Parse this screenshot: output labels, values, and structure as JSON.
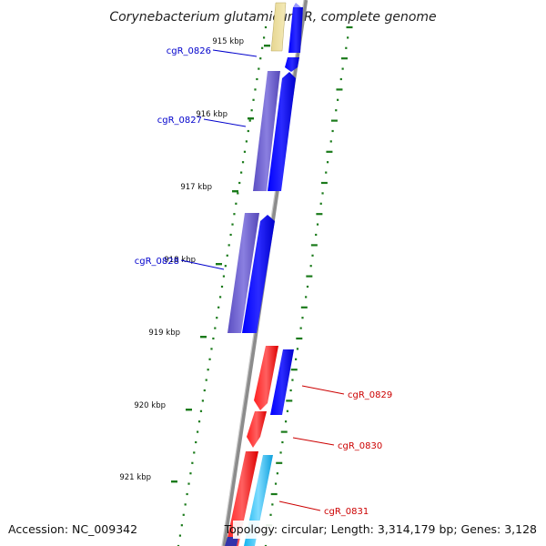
{
  "title": "Corynebacterium glutamicum R, complete genome",
  "ticks": [
    "915 kbp",
    "916 kbp",
    "917 kbp",
    "918 kbp",
    "919 kbp",
    "920 kbp",
    "921 kbp"
  ],
  "genes": [
    "cgR_0826",
    "cgR_0827",
    "cgR_0828",
    "cgR_0829",
    "cgR_0830",
    "cgR_0831"
  ],
  "footer": {
    "accession": "Accession: NC_009342",
    "topology": "Topology: circular; Length: 3,314,179 bp; Genes: 3,128"
  },
  "colors": {
    "forward_cds": "#0000ee",
    "reverse_cds": "#ee0000",
    "forward_feature": "#6a5acd",
    "rna_feature": "#00bfff",
    "misc_feature": "#e6d690",
    "dots": "#1a7a1a",
    "backbone": "#8c8c8c"
  }
}
